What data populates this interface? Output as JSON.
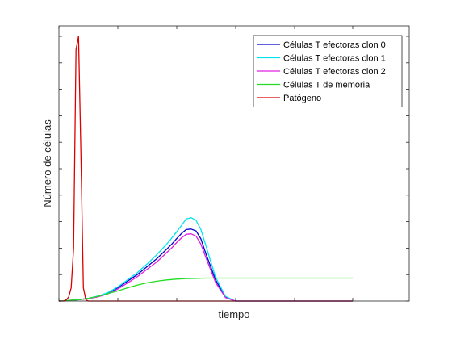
{
  "chart_data": {
    "type": "line",
    "xlabel": "tiempo",
    "ylabel": "Número de células",
    "xlim": [
      0,
      60
    ],
    "ylim": [
      0,
      1
    ],
    "tick_labels_shown": false,
    "grid": false,
    "legend_position": "top-right",
    "series": [
      {
        "name": "Células T efectoras clon 0",
        "color": "#0000cc",
        "x": [
          0,
          2,
          4,
          6,
          8,
          10,
          12,
          14,
          16,
          18,
          20,
          21,
          22,
          23,
          24,
          25,
          26,
          27,
          28,
          29,
          30,
          32,
          34,
          36,
          60
        ],
        "y": [
          0,
          0.002,
          0.005,
          0.01,
          0.018,
          0.03,
          0.05,
          0.075,
          0.1,
          0.13,
          0.16,
          0.178,
          0.196,
          0.214,
          0.235,
          0.255,
          0.27,
          0.272,
          0.265,
          0.235,
          0.18,
          0.08,
          0.015,
          0,
          0
        ]
      },
      {
        "name": "Células T efectoras clon 1",
        "color": "#00e5ee",
        "x": [
          0,
          2,
          4,
          6,
          8,
          10,
          12,
          14,
          16,
          18,
          20,
          21,
          22,
          23,
          24,
          25,
          26,
          27,
          28,
          29,
          30,
          32,
          34,
          36,
          60
        ],
        "y": [
          0,
          0.002,
          0.005,
          0.01,
          0.019,
          0.032,
          0.053,
          0.08,
          0.107,
          0.14,
          0.175,
          0.195,
          0.215,
          0.237,
          0.26,
          0.285,
          0.31,
          0.315,
          0.305,
          0.27,
          0.21,
          0.09,
          0.018,
          0,
          0
        ]
      },
      {
        "name": "Células T efectoras clon 2",
        "color": "#e020e0",
        "x": [
          0,
          2,
          4,
          6,
          8,
          10,
          12,
          14,
          16,
          18,
          20,
          21,
          22,
          23,
          24,
          25,
          26,
          27,
          28,
          29,
          30,
          32,
          34,
          36,
          60
        ],
        "y": [
          0,
          0.002,
          0.005,
          0.009,
          0.016,
          0.027,
          0.045,
          0.068,
          0.092,
          0.12,
          0.148,
          0.165,
          0.183,
          0.2,
          0.22,
          0.238,
          0.252,
          0.254,
          0.245,
          0.215,
          0.165,
          0.07,
          0.013,
          0,
          0
        ]
      },
      {
        "name": "Células T de memoria",
        "color": "#22dd22",
        "x": [
          0,
          4,
          6,
          8,
          10,
          12,
          14,
          16,
          18,
          20,
          22,
          24,
          26,
          28,
          30,
          34,
          40,
          50,
          60
        ],
        "y": [
          0,
          0.005,
          0.01,
          0.018,
          0.028,
          0.038,
          0.05,
          0.06,
          0.069,
          0.075,
          0.08,
          0.083,
          0.085,
          0.086,
          0.087,
          0.087,
          0.087,
          0.087,
          0.087
        ]
      },
      {
        "name": "Patógeno",
        "color": "#dd0000",
        "x": [
          0,
          1,
          1.5,
          2,
          2.5,
          3,
          3.5,
          4,
          4.5,
          5,
          5.5,
          6,
          60
        ],
        "y": [
          0,
          0,
          0.005,
          0.015,
          0.05,
          0.2,
          0.95,
          1.0,
          0.55,
          0.05,
          0.005,
          0,
          0
        ]
      }
    ]
  }
}
